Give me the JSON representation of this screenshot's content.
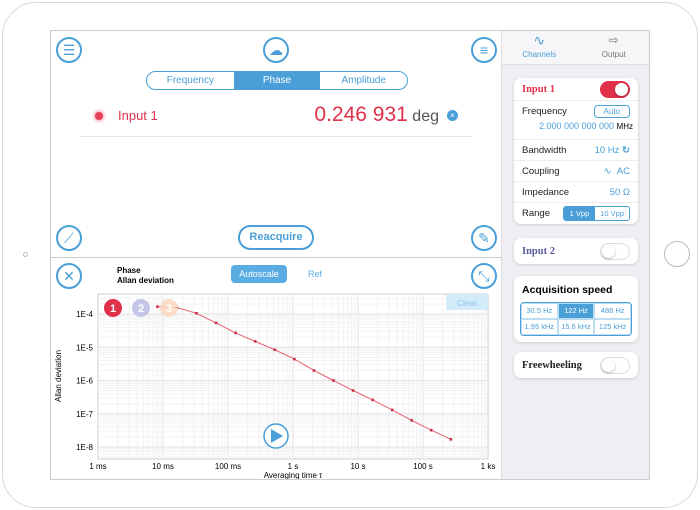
{
  "tabs": [
    "Frequency",
    "Phase",
    "Amplitude"
  ],
  "active_tab": "Phase",
  "reading": {
    "channel": "Input 1",
    "value": "0.246 931",
    "unit": "deg"
  },
  "reacquire": "Reacquire",
  "plot_header": {
    "line1": "Phase",
    "line2": "Allan deviation",
    "autoscale": "Autoscale",
    "ref": "Ref",
    "clear": "Clear"
  },
  "markers": [
    "1",
    "2",
    "3"
  ],
  "sidebar": {
    "tabs": [
      {
        "label": "Channels",
        "icon": "sine-wave-icon"
      },
      {
        "label": "Output",
        "icon": "output-icon"
      }
    ],
    "input1": {
      "title": "Input 1",
      "enabled": true,
      "frequency_label": "Frequency",
      "auto": "Auto",
      "frequency_value": "2.000 000 000 000",
      "frequency_unit": "MHz",
      "bandwidth_label": "Bandwidth",
      "bandwidth": "10 Hz",
      "coupling_label": "Coupling",
      "coupling": "AC",
      "impedance_label": "Impedance",
      "impedance": "50 Ω",
      "range_label": "Range",
      "ranges": [
        "1 Vpp",
        "10 Vpp"
      ],
      "range_selected": "1 Vpp"
    },
    "input2": {
      "title": "Input 2",
      "enabled": false
    },
    "acq": {
      "title": "Acquisition speed",
      "options": [
        "30.5 Hz",
        "122 Hz",
        "488 Hz",
        "1.95 kHz",
        "15.6 kHz",
        "125 kHz"
      ],
      "selected": "122 Hz"
    },
    "freewheeling": {
      "title": "Freewheeling",
      "enabled": false
    }
  },
  "colors": {
    "accent": "#4a9fd8",
    "red": "#e0304a"
  },
  "chart_data": {
    "type": "line",
    "title": "Phase Allan deviation",
    "xlabel": "Averaging time τ",
    "ylabel": "Allan deviation",
    "xscale": "log",
    "yscale": "log",
    "xlim": [
      0.001,
      1000
    ],
    "ylim": [
      1e-08,
      0.0003
    ],
    "xticks": [
      0.001,
      0.01,
      0.1,
      1,
      10,
      100,
      1000
    ],
    "xtick_labels": [
      "1 ms",
      "10 ms",
      "100 ms",
      "1 s",
      "10 s",
      "100 s",
      "1 ks"
    ],
    "yticks": [
      0.0001,
      1e-05,
      1e-06,
      1e-07,
      1e-08
    ],
    "ytick_labels": [
      "1E-4",
      "1E-5",
      "1E-6",
      "1E-7",
      "1E-8"
    ],
    "grid": true,
    "series": [
      {
        "name": "Input 1",
        "color": "#e0304a",
        "x": [
          0.0082,
          0.0164,
          0.0328,
          0.0655,
          0.131,
          0.262,
          0.524,
          1.05,
          2.1,
          4.19,
          8.39,
          16.8,
          33.6,
          67.1,
          134,
          268
        ],
        "y": [
          0.000166,
          0.000155,
          0.000105,
          5.4e-05,
          2.7e-05,
          1.5e-05,
          8.4e-06,
          4.4e-06,
          2e-06,
          1e-06,
          5e-07,
          2.6e-07,
          1.3e-07,
          6.3e-08,
          3.2e-08,
          1.7e-08
        ]
      }
    ]
  }
}
